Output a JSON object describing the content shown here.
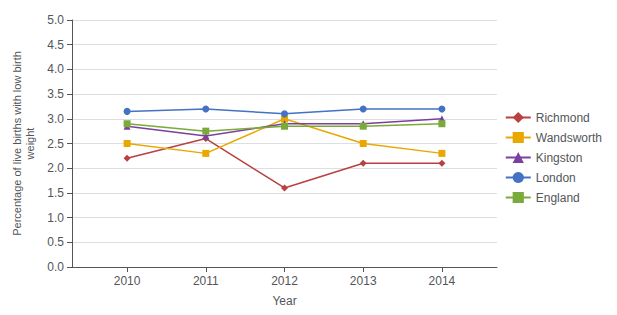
{
  "chart_data": {
    "type": "line",
    "xlabel": "Year",
    "ylabel": "Percentage of live births with low birth\nweight",
    "x": [
      2010,
      2011,
      2012,
      2013,
      2014
    ],
    "series": [
      {
        "name": "Richmond",
        "color": "#b94040",
        "marker": "diamond",
        "values": [
          2.2,
          2.6,
          1.6,
          2.1,
          2.1
        ]
      },
      {
        "name": "Wandsworth",
        "color": "#e8a800",
        "marker": "rect",
        "values": [
          2.5,
          2.3,
          3.0,
          2.5,
          2.3
        ]
      },
      {
        "name": "Kingston",
        "color": "#7b3fa0",
        "marker": "triangle",
        "values": [
          2.85,
          2.65,
          2.9,
          2.9,
          3.0
        ]
      },
      {
        "name": "London",
        "color": "#4472c4",
        "marker": "circle",
        "values": [
          3.15,
          3.2,
          3.1,
          3.2,
          3.2
        ]
      },
      {
        "name": "England",
        "color": "#7aaa3a",
        "marker": "rect",
        "values": [
          2.9,
          2.75,
          2.85,
          2.85,
          2.9
        ]
      }
    ],
    "xlim": [
      2009.3,
      2014.7
    ],
    "xticks": [
      2010,
      2011,
      2012,
      2013,
      2014
    ],
    "ylim": [
      0,
      5
    ],
    "yticks": [
      {
        "value": 0,
        "label": "0.0"
      },
      0.5,
      {
        "value": 1,
        "label": "1.0"
      },
      1.5,
      {
        "value": 2,
        "label": "2.0"
      },
      2.5,
      {
        "value": 3,
        "label": "3.0"
      },
      3.5,
      {
        "value": 4,
        "label": "4.0"
      },
      4.5,
      {
        "value": 5,
        "label": "5.0"
      }
    ],
    "grid": true,
    "legend": "right"
  }
}
